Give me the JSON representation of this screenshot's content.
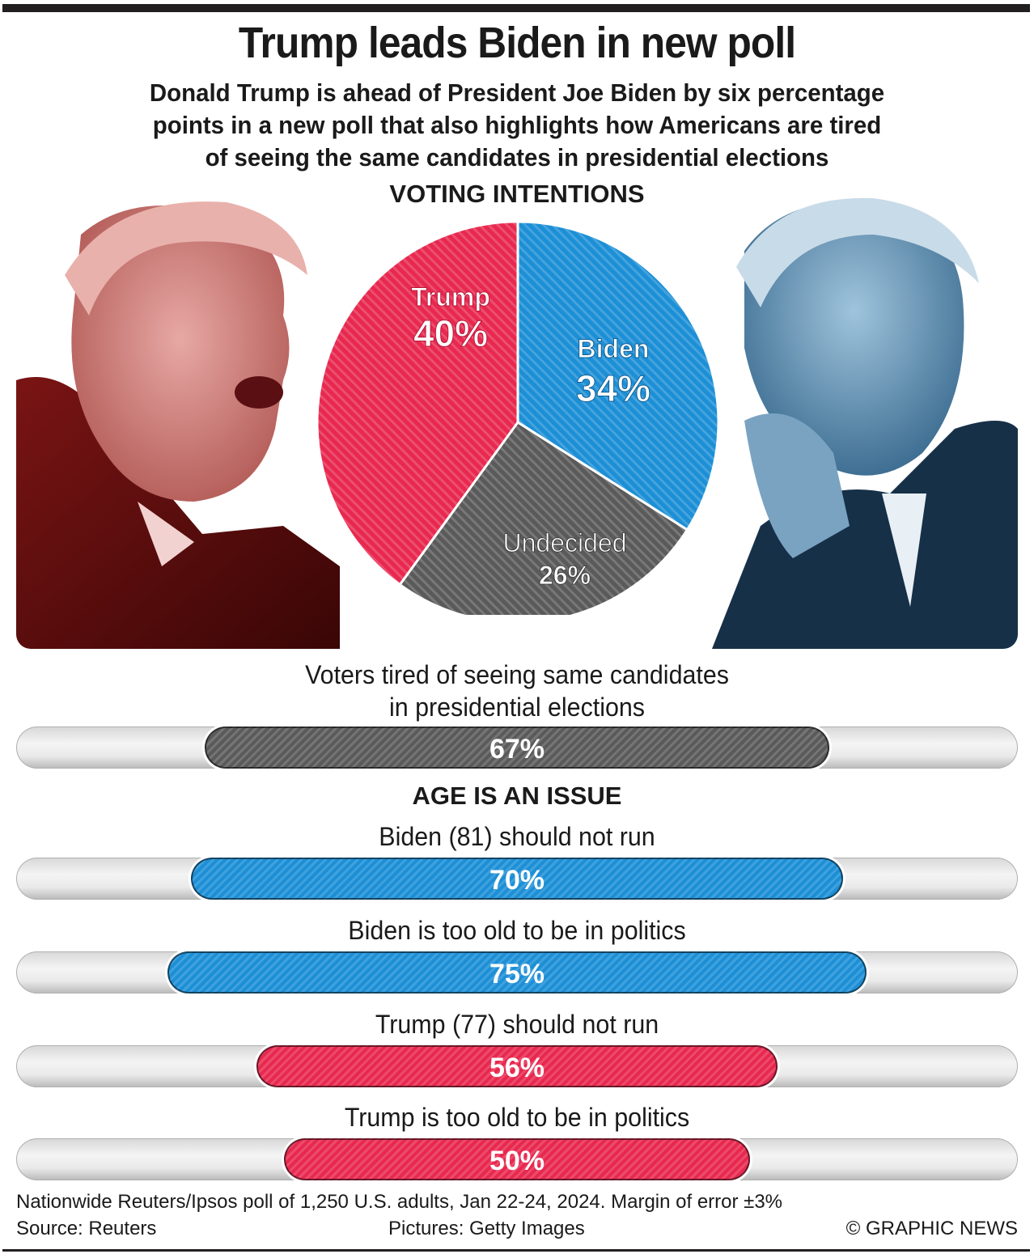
{
  "header": {
    "title": "Trump leads Biden in new poll",
    "subtitle_lines": [
      "Donald Trump is ahead of President Joe Biden by six percentage",
      "points in a new poll that also highlights how Americans are tired",
      "of seeing the same candidates in presidential elections"
    ]
  },
  "photos": {
    "left": "Donald Trump photo (red duotone)",
    "right": "Joe Biden photo (blue duotone)"
  },
  "colors": {
    "trump": "#e8284f",
    "biden": "#1c8fd6",
    "undecided": "#5a5a5a",
    "track": "#e6e6e6"
  },
  "chart_data": [
    {
      "type": "pie",
      "title": "VOTING INTENTIONS",
      "categories": [
        "Trump",
        "Biden",
        "Undecided"
      ],
      "values": [
        40,
        34,
        26
      ],
      "labels": [
        "40%",
        "34%",
        "26%"
      ],
      "unit": "%"
    },
    {
      "type": "bar",
      "orientation": "horizontal",
      "title": "",
      "categories": [
        "Voters tired of seeing same candidates in presidential elections"
      ],
      "label_lines": [
        [
          "Voters tired of seeing same candidates",
          "in presidential elections"
        ]
      ],
      "values": [
        67
      ],
      "labels": [
        "67%"
      ],
      "series_color": [
        "undecided"
      ],
      "xlim": [
        0,
        100
      ]
    },
    {
      "type": "bar",
      "orientation": "horizontal",
      "title": "AGE IS AN ISSUE",
      "categories": [
        "Biden (81) should not run",
        "Biden is too old to be in politics",
        "Trump (77) should not run",
        "Trump is too old to be in politics"
      ],
      "values": [
        70,
        75,
        56,
        50
      ],
      "labels": [
        "70%",
        "75%",
        "56%",
        "50%"
      ],
      "series_color": [
        "biden",
        "biden",
        "trump",
        "trump"
      ],
      "xlim": [
        0,
        100
      ]
    }
  ],
  "footer": {
    "note": "Nationwide Reuters/Ipsos poll of 1,250 U.S. adults, Jan 22-24, 2024. Margin of error ±3%",
    "source": "Source: Reuters",
    "pictures": "Pictures: Getty Images",
    "credit": "© GRAPHIC NEWS"
  }
}
